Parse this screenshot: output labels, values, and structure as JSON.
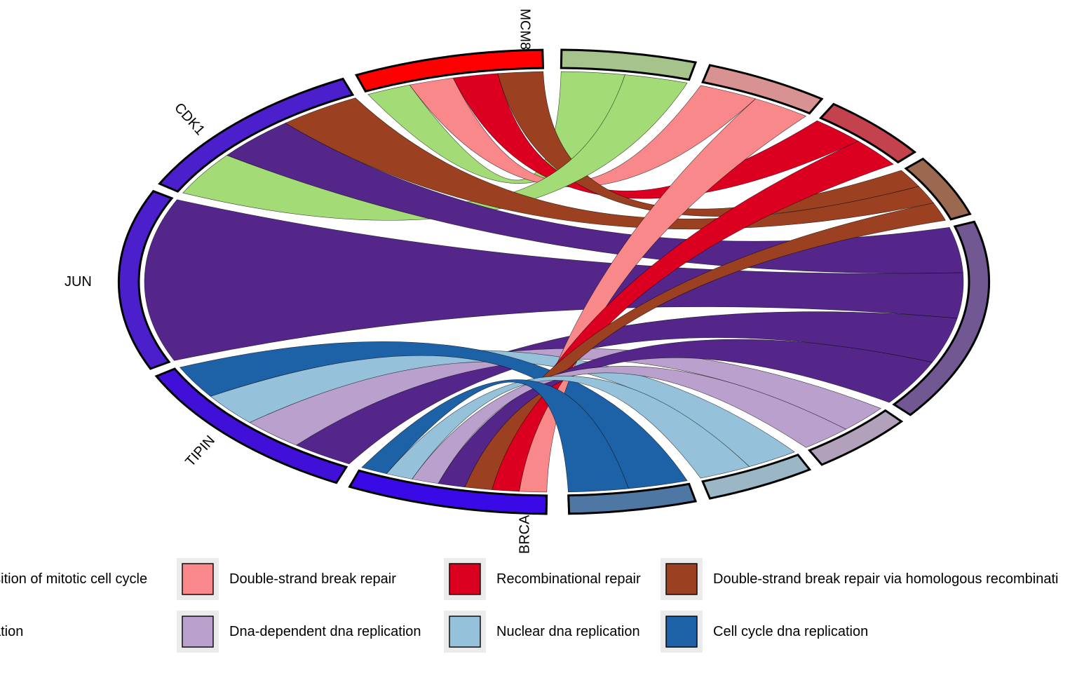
{
  "chart_data": {
    "type": "chord",
    "genes": [
      {
        "name": "MCM8",
        "color": "#ff0000"
      },
      {
        "name": "CDK1",
        "color": "#4b1fcc"
      },
      {
        "name": "JUN",
        "color": "#4b1fcc"
      },
      {
        "name": "TIPIN",
        "color": "#4010d8"
      },
      {
        "name": "BRCA",
        "color": "#3a0ae6"
      }
    ],
    "terms": [
      {
        "name": "Transition of mitotic cell cycle",
        "color": "#a3dc76",
        "band": "#a5c38a"
      },
      {
        "name": "Double-strand break repair",
        "color": "#f8888a",
        "band": "#d89292"
      },
      {
        "name": "Recombinational repair",
        "color": "#dc0020",
        "band": "#c4424e"
      },
      {
        "name": "Double-strand break repair via homologous recombination",
        "color": "#9b4021",
        "band": "#9b6950"
      },
      {
        "name": "Dna replication",
        "color": "#542689",
        "band": "#715892"
      },
      {
        "name": "Dna-dependent dna replication",
        "color": "#baa0cc",
        "band": "#b2a1bb"
      },
      {
        "name": "Nuclear dna replication",
        "color": "#95c2da",
        "band": "#9bb7c6"
      },
      {
        "name": "Cell cycle dna replication",
        "color": "#1d62a6",
        "band": "#4e78a3"
      }
    ],
    "links": [
      [
        "MCM8",
        "Transition of mitotic cell cycle"
      ],
      [
        "MCM8",
        "Double-strand break repair"
      ],
      [
        "MCM8",
        "Recombinational repair"
      ],
      [
        "MCM8",
        "Double-strand break repair via homologous recombination"
      ],
      [
        "CDK1",
        "Transition of mitotic cell cycle"
      ],
      [
        "CDK1",
        "Dna replication"
      ],
      [
        "CDK1",
        "Double-strand break repair via homologous recombination"
      ],
      [
        "JUN",
        "Dna replication"
      ],
      [
        "TIPIN",
        "Dna replication"
      ],
      [
        "TIPIN",
        "Dna-dependent dna replication"
      ],
      [
        "TIPIN",
        "Nuclear dna replication"
      ],
      [
        "TIPIN",
        "Cell cycle dna replication"
      ],
      [
        "BRCA",
        "Double-strand break repair"
      ],
      [
        "BRCA",
        "Recombinational repair"
      ],
      [
        "BRCA",
        "Double-strand break repair via homologous recombination"
      ],
      [
        "BRCA",
        "Dna replication"
      ],
      [
        "BRCA",
        "Dna-dependent dna replication"
      ],
      [
        "BRCA",
        "Nuclear dna replication"
      ],
      [
        "BRCA",
        "Cell cycle dna replication"
      ]
    ],
    "legend": {
      "position": "bottom",
      "columns": 4,
      "rows": 2,
      "visible_labels": [
        "nsition of mitotic cell cycle",
        "Double-strand break repair",
        "Recombinational repair",
        "Double-strand break repair via homologous recombinati",
        "cation",
        "Dna-dependent dna replication",
        "Nuclear dna replication",
        "Cell cycle dna replication"
      ]
    }
  }
}
